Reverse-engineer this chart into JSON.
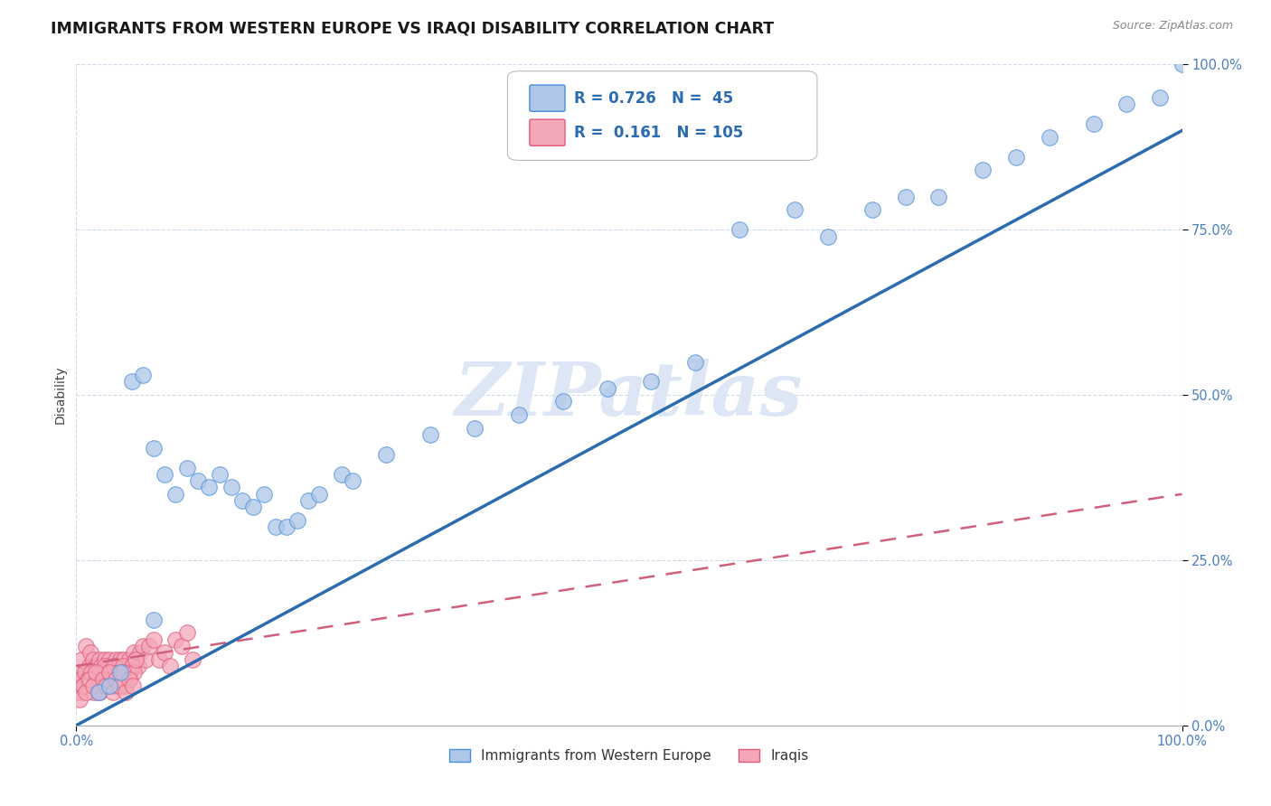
{
  "title": "IMMIGRANTS FROM WESTERN EUROPE VS IRAQI DISABILITY CORRELATION CHART",
  "source": "Source: ZipAtlas.com",
  "ylabel": "Disability",
  "yticks_labels": [
    "0.0%",
    "25.0%",
    "50.0%",
    "75.0%",
    "100.0%"
  ],
  "ytick_vals": [
    0,
    25,
    50,
    75,
    100
  ],
  "legend_blue_label": "Immigrants from Western Europe",
  "legend_pink_label": "Iraqis",
  "blue_R": 0.726,
  "blue_N": 45,
  "pink_R": 0.161,
  "pink_N": 105,
  "blue_fill": "#aec6e8",
  "blue_edge": "#4a90d9",
  "pink_fill": "#f4a7b9",
  "pink_edge": "#e05a7a",
  "blue_line_color": "#2b6cb0",
  "pink_line_color": "#d0607a",
  "watermark": "ZIPatlas",
  "watermark_color": "#dce6f5",
  "blue_x": [
    2,
    4,
    5,
    6,
    7,
    8,
    9,
    10,
    11,
    12,
    13,
    14,
    15,
    16,
    17,
    18,
    19,
    20,
    21,
    22,
    24,
    25,
    28,
    32,
    36,
    40,
    44,
    48,
    52,
    56,
    60,
    65,
    68,
    72,
    75,
    78,
    82,
    85,
    88,
    92,
    95,
    98,
    100,
    3,
    7
  ],
  "blue_y": [
    5,
    8,
    52,
    53,
    42,
    38,
    35,
    39,
    37,
    36,
    38,
    36,
    34,
    33,
    35,
    30,
    30,
    31,
    34,
    35,
    38,
    37,
    41,
    44,
    45,
    47,
    49,
    51,
    52,
    55,
    75,
    78,
    74,
    78,
    80,
    80,
    84,
    86,
    89,
    91,
    94,
    95,
    100,
    6,
    16
  ],
  "pink_x": [
    0.3,
    0.5,
    0.7,
    0.9,
    1.0,
    1.1,
    1.2,
    1.3,
    1.4,
    1.5,
    1.6,
    1.7,
    1.8,
    1.9,
    2.0,
    2.1,
    2.2,
    2.3,
    2.4,
    2.5,
    2.6,
    2.7,
    2.8,
    2.9,
    3.0,
    3.1,
    3.2,
    3.3,
    3.4,
    3.5,
    3.6,
    3.7,
    3.8,
    3.9,
    4.0,
    4.1,
    4.2,
    4.3,
    4.4,
    4.5,
    4.6,
    4.7,
    4.8,
    4.9,
    5.0,
    5.2,
    5.4,
    5.6,
    5.8,
    6.0,
    6.3,
    6.6,
    7.0,
    7.5,
    8.0,
    8.5,
    9.0,
    9.5,
    10.0,
    10.5,
    0.2,
    0.4,
    0.6,
    0.8,
    1.0,
    1.2,
    1.4,
    1.6,
    1.8,
    2.0,
    2.2,
    2.4,
    2.6,
    2.8,
    3.0,
    3.2,
    3.4,
    3.6,
    3.8,
    4.0,
    4.2,
    4.4,
    4.6,
    4.8,
    5.0,
    5.2,
    5.4,
    0.3,
    0.6,
    0.9,
    1.2,
    1.5,
    1.8,
    2.1,
    2.4,
    2.7,
    3.0,
    3.3,
    3.6,
    3.9,
    4.2,
    4.5,
    4.8,
    5.1
  ],
  "pink_y": [
    8,
    10,
    6,
    12,
    8,
    7,
    9,
    11,
    7,
    10,
    8,
    6,
    9,
    7,
    8,
    10,
    7,
    9,
    8,
    6,
    10,
    7,
    9,
    8,
    10,
    8,
    7,
    9,
    6,
    8,
    10,
    7,
    9,
    8,
    10,
    7,
    8,
    10,
    6,
    9,
    8,
    7,
    10,
    8,
    9,
    11,
    10,
    9,
    11,
    12,
    10,
    12,
    13,
    10,
    11,
    9,
    13,
    12,
    14,
    10,
    5,
    7,
    6,
    8,
    7,
    6,
    8,
    5,
    7,
    6,
    8,
    7,
    9,
    6,
    8,
    7,
    9,
    6,
    8,
    7,
    9,
    6,
    8,
    7,
    9,
    8,
    10,
    4,
    6,
    5,
    7,
    6,
    8,
    5,
    7,
    6,
    8,
    5,
    7,
    6,
    8,
    5,
    7,
    6
  ]
}
